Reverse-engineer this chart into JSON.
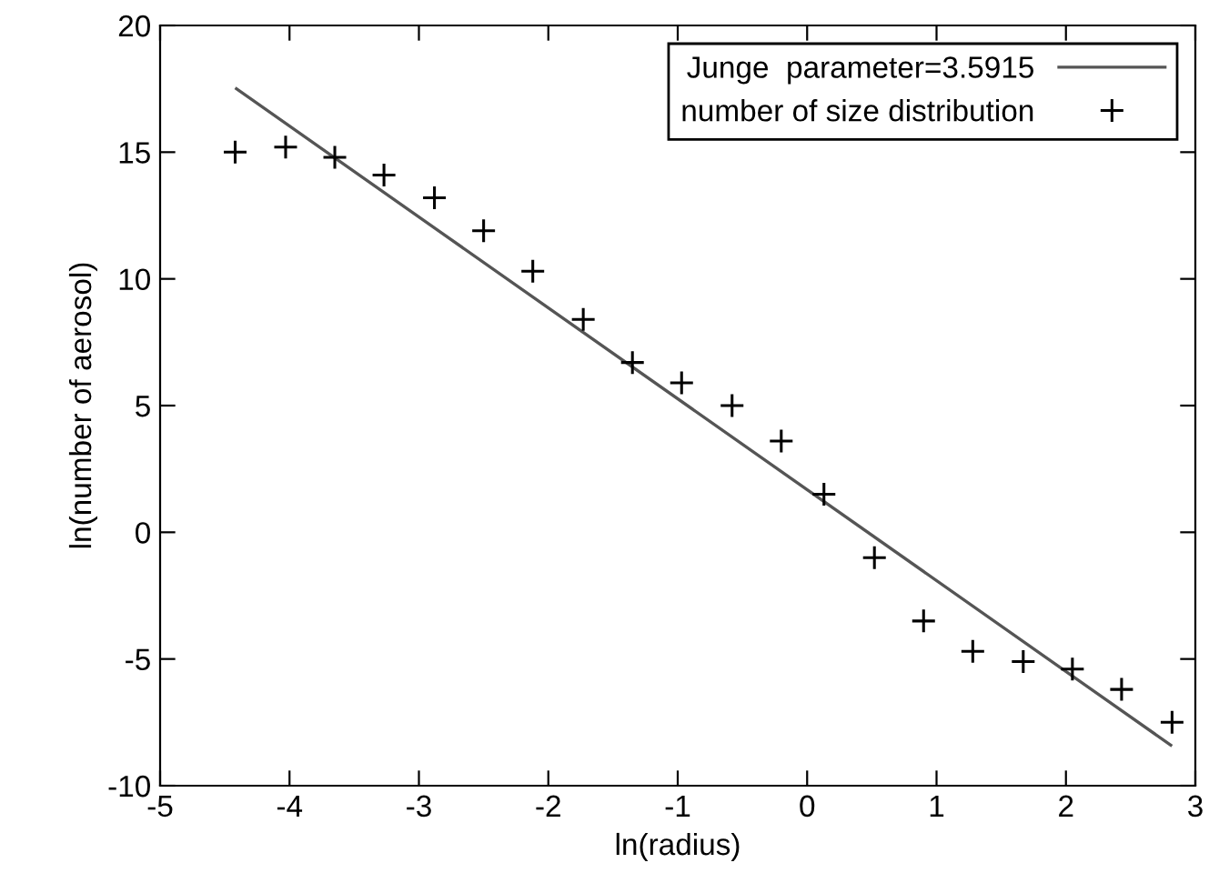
{
  "chart_data": {
    "type": "scatter",
    "xlabel": "ln(radius)",
    "ylabel": "ln(number of aerosol)",
    "xlim": [
      -5,
      3
    ],
    "xticks": [
      -5,
      -4,
      -3,
      -2,
      -1,
      0,
      1,
      2,
      3
    ],
    "ylim": [
      -10,
      20
    ],
    "yticks": [
      -10,
      -5,
      0,
      5,
      10,
      15,
      20
    ],
    "grid": false,
    "legend": "top right",
    "series": [
      {
        "name": "Junge  parameter=3.5915",
        "type": "line",
        "color": "#555555",
        "line_style": "solid",
        "marker": "none",
        "x": [
          -4.41,
          2.81
        ],
        "values": [
          17.5,
          -8.4
        ]
      },
      {
        "name": "number of size distribution",
        "color": "#000000",
        "marker": "cross",
        "x": [
          -4.42,
          -4.03,
          -3.65,
          -3.27,
          -2.88,
          -2.5,
          -2.12,
          -1.73,
          -1.35,
          -0.97,
          -0.58,
          -0.2,
          0.13,
          0.52,
          0.9,
          1.28,
          1.67,
          2.05,
          2.43,
          2.82
        ],
        "values": [
          15.0,
          15.2,
          14.8,
          14.1,
          13.2,
          11.9,
          10.3,
          8.4,
          6.7,
          5.9,
          5.0,
          3.6,
          1.5,
          -1.0,
          -3.5,
          -4.7,
          -5.1,
          -5.4,
          -6.2,
          -7.5
        ]
      }
    ]
  }
}
